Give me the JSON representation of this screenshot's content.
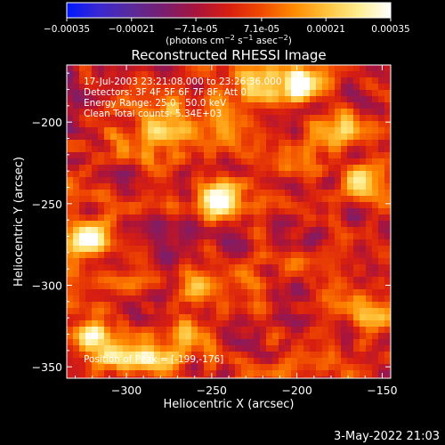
{
  "colors": {
    "background": "#000000",
    "foreground": "#ffffff",
    "colormap": [
      "#0018ff",
      "#3a28d0",
      "#5a2a9a",
      "#7a1e6e",
      "#a8143c",
      "#d81e10",
      "#f04a00",
      "#ff8a00",
      "#ffc23a",
      "#ffee90",
      "#ffffff"
    ]
  },
  "colorbar": {
    "range": [
      -0.00035,
      0.00035
    ],
    "ticks": [
      "-0.00035",
      "-0.00021",
      "-7.1e-05",
      "7.1e-05",
      "0.00021",
      "0.00035"
    ],
    "unit_label": "(photons cm^-2 s^-1 asec^-2)"
  },
  "chart_data": {
    "type": "heatmap",
    "title": "Reconstructed RHESSI Image",
    "xlabel": "Heliocentric X (arcsec)",
    "ylabel": "Heliocentric Y (arcsec)",
    "xlim": [
      -335,
      -145
    ],
    "ylim": [
      -357,
      -165
    ],
    "xticks": [
      -300,
      -250,
      -200,
      -150
    ],
    "yticks": [
      -350,
      -300,
      -250,
      -200
    ],
    "xtick_labels": [
      "−300",
      "−250",
      "−200",
      "−150"
    ],
    "ytick_labels": [
      "−350",
      "−300",
      "−250",
      "−200"
    ],
    "annotations": [
      "17-Jul-2003 23:21:08.000 to 23:26:36.000",
      "Detectors: 3F 4F 5F 6F 7F 8F, Att 0",
      "Energy Range: 25.0 - 50.0 keV",
      "Clean    Total counts: 5.34E+03"
    ],
    "peak_label": "Position of Peak = [-199,-176]",
    "peak_position": [
      -199,
      -176
    ],
    "intensity_max": 0.00035,
    "bright_sources": [
      {
        "x": -325,
        "y": -272,
        "value": 0.00035
      },
      {
        "x": -318,
        "y": -330,
        "value": 0.00028
      },
      {
        "x": -300,
        "y": -343,
        "value": 0.00033
      },
      {
        "x": -280,
        "y": -348,
        "value": 0.0003
      },
      {
        "x": -262,
        "y": -333,
        "value": 0.00022
      },
      {
        "x": -287,
        "y": -215,
        "value": 0.0002
      },
      {
        "x": -273,
        "y": -197,
        "value": 0.00025
      },
      {
        "x": -247,
        "y": -249,
        "value": 0.00034
      },
      {
        "x": -236,
        "y": -197,
        "value": 0.00022
      },
      {
        "x": -199,
        "y": -176,
        "value": 0.00035
      },
      {
        "x": -222,
        "y": -176,
        "value": 0.00022
      },
      {
        "x": -254,
        "y": -300,
        "value": 0.00016
      },
      {
        "x": -163,
        "y": -240,
        "value": 0.00024
      },
      {
        "x": -172,
        "y": -206,
        "value": 0.00018
      },
      {
        "x": -154,
        "y": -318,
        "value": 0.00015
      },
      {
        "x": -183,
        "y": -345,
        "value": 0.00012
      },
      {
        "x": -307,
        "y": -208,
        "value": 0.00014
      }
    ]
  },
  "timestamp": "3-May-2022 21:03"
}
